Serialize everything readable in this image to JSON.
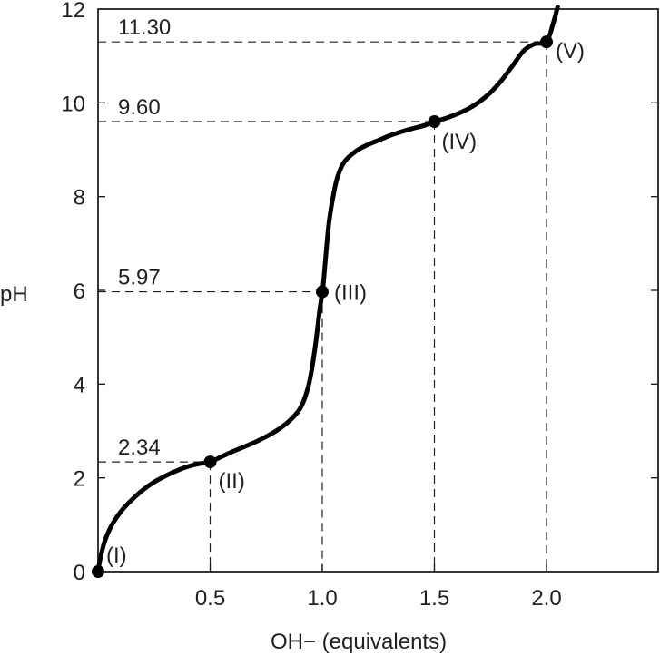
{
  "chart_data": {
    "type": "line",
    "title": "",
    "xlabel": "OH− (equivalents)",
    "ylabel": "pH",
    "xlim": [
      0,
      2.5
    ],
    "ylim": [
      0,
      12
    ],
    "x_ticks": [
      0.5,
      1.0,
      1.5,
      2.0
    ],
    "x_tick_labels": [
      "0.5",
      "1.0",
      "1.5",
      "2.0"
    ],
    "y_ticks": [
      0,
      2,
      4,
      6,
      8,
      10,
      12
    ],
    "y_tick_labels": [
      "0",
      "2",
      "4",
      "6",
      "8",
      "10",
      "12"
    ],
    "grid": false,
    "series": [
      {
        "x": [
          0.0,
          0.01,
          0.03,
          0.06,
          0.1,
          0.15,
          0.2,
          0.25,
          0.3,
          0.35,
          0.4,
          0.45,
          0.5,
          0.55,
          0.6,
          0.65,
          0.7,
          0.75,
          0.8,
          0.85,
          0.9,
          0.93,
          0.95,
          0.97,
          0.985,
          0.995,
          1.0,
          1.005,
          1.015,
          1.03,
          1.05,
          1.07,
          1.1,
          1.15,
          1.2,
          1.25,
          1.3,
          1.35,
          1.4,
          1.45,
          1.5,
          1.55,
          1.6,
          1.65,
          1.7,
          1.75,
          1.8,
          1.85,
          1.9,
          1.95,
          2.0,
          2.03,
          2.05
        ],
        "y": [
          0.0,
          0.28,
          0.65,
          0.98,
          1.27,
          1.53,
          1.74,
          1.91,
          2.04,
          2.15,
          2.24,
          2.3,
          2.34,
          2.45,
          2.56,
          2.66,
          2.76,
          2.88,
          3.02,
          3.2,
          3.47,
          3.82,
          4.22,
          4.85,
          5.45,
          5.8,
          5.97,
          6.15,
          6.7,
          7.45,
          8.05,
          8.45,
          8.75,
          8.97,
          9.1,
          9.2,
          9.3,
          9.38,
          9.45,
          9.51,
          9.6,
          9.67,
          9.76,
          9.87,
          10.02,
          10.22,
          10.48,
          10.8,
          11.12,
          11.26,
          11.3,
          11.7,
          12.05
        ]
      }
    ],
    "points": [
      {
        "label": "(I)",
        "x": 0.0,
        "y": 0.0
      },
      {
        "label": "(II)",
        "x": 0.5,
        "y": 2.34
      },
      {
        "label": "(III)",
        "x": 1.0,
        "y": 5.97
      },
      {
        "label": "(IV)",
        "x": 1.5,
        "y": 9.6
      },
      {
        "label": "(V)",
        "x": 2.0,
        "y": 11.3
      }
    ],
    "annotations": [
      {
        "text": "2.34",
        "y": 2.34,
        "x": 0.5
      },
      {
        "text": "5.97",
        "y": 5.97,
        "x": 1.0
      },
      {
        "text": "9.60",
        "y": 9.6,
        "x": 1.5
      },
      {
        "text": "11.30",
        "y": 11.3,
        "x": 2.0
      }
    ],
    "colors": {
      "curve": "#000000",
      "text": "#231f20",
      "frame": "#231f20"
    }
  }
}
